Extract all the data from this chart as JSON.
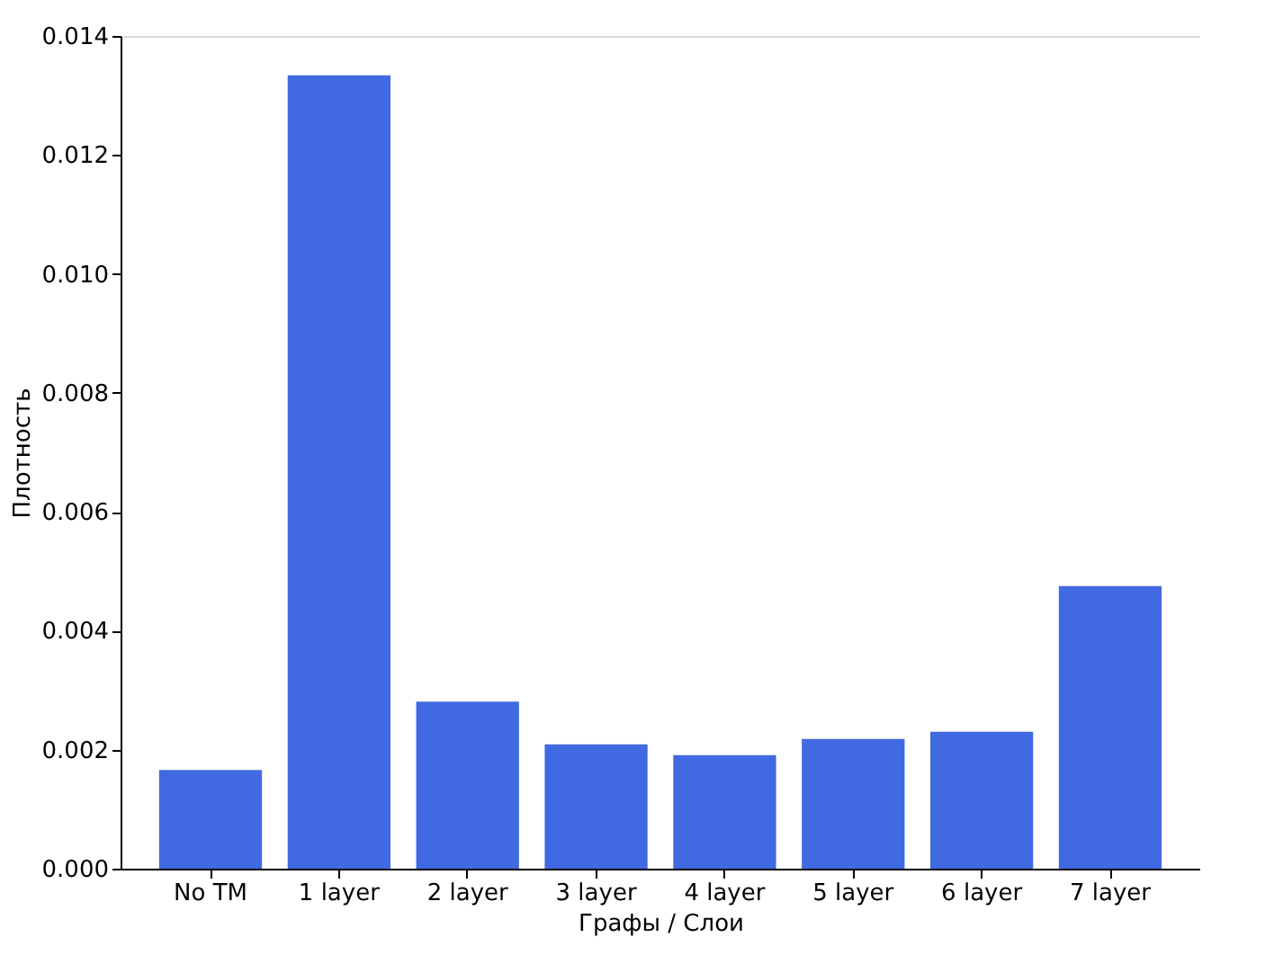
{
  "chart_data": {
    "type": "bar",
    "xlabel": "Графы / Слои",
    "ylabel": "Плотность",
    "categories": [
      "No TM",
      "1 layer",
      "2 layer",
      "3 layer",
      "4 layer",
      "5 layer",
      "6 layer",
      "7 layer"
    ],
    "values": [
      0.00166,
      0.01334,
      0.00281,
      0.00209,
      0.00191,
      0.00218,
      0.0023,
      0.00475
    ],
    "color": "#4169e1",
    "ylim": [
      0,
      0.014
    ],
    "yticks": [
      {
        "value": 0,
        "label": "0.000"
      },
      {
        "value": 0.002,
        "label": "0.002"
      },
      {
        "value": 0.004,
        "label": "0.004"
      },
      {
        "value": 0.006,
        "label": "0.006"
      },
      {
        "value": 0.008,
        "label": "0.008"
      },
      {
        "value": 0.01,
        "label": "0.010"
      },
      {
        "value": 0.012,
        "label": "0.012"
      },
      {
        "value": 0.014,
        "label": "0.014"
      }
    ],
    "grid": false
  }
}
